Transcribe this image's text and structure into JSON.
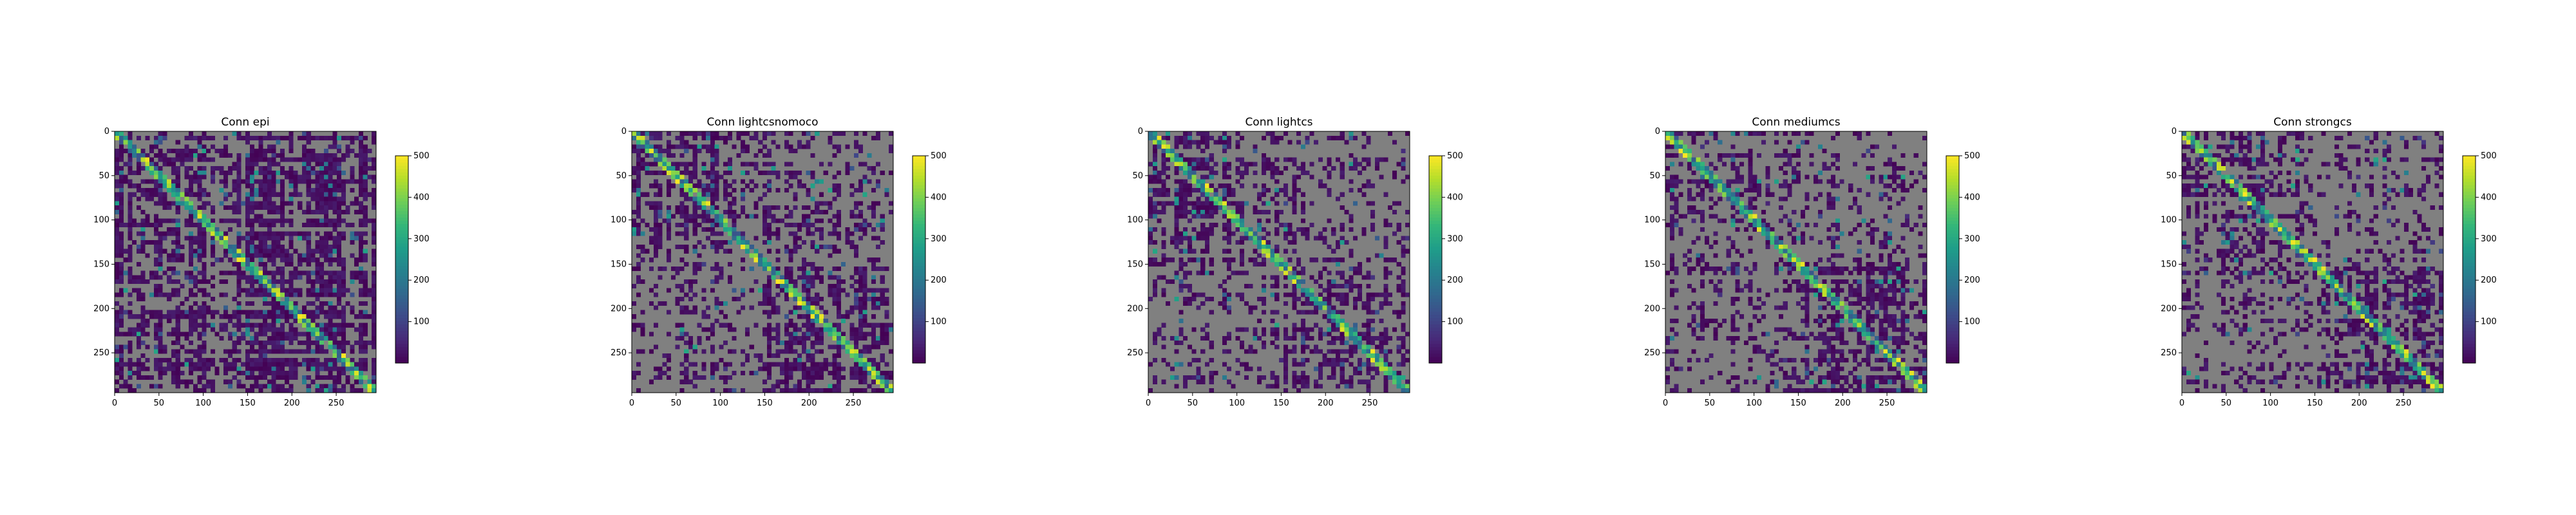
{
  "chart_data": [
    {
      "type": "heatmap",
      "title": "Conn epi",
      "matrix_size": 295,
      "background_color": "#808080",
      "mask_density": 0.55,
      "xticks": [
        0,
        50,
        100,
        150,
        200,
        250
      ],
      "yticks": [
        0,
        50,
        100,
        150,
        200,
        250
      ],
      "xlim": [
        0,
        295
      ],
      "ylim": [
        295,
        0
      ],
      "colorbar": {
        "ticks": [
          100,
          200,
          300,
          400,
          500
        ],
        "range": [
          0,
          500
        ],
        "colormap": "viridis"
      },
      "grid": false
    },
    {
      "type": "heatmap",
      "title": "Conn lightcsnomoco",
      "matrix_size": 295,
      "background_color": "#808080",
      "mask_density": 0.22,
      "xticks": [
        0,
        50,
        100,
        150,
        200,
        250
      ],
      "yticks": [
        0,
        50,
        100,
        150,
        200,
        250
      ],
      "xlim": [
        0,
        295
      ],
      "ylim": [
        295,
        0
      ],
      "colorbar": {
        "ticks": [
          100,
          200,
          300,
          400,
          500
        ],
        "range": [
          0,
          500
        ],
        "colormap": "viridis"
      },
      "grid": false
    },
    {
      "type": "heatmap",
      "title": "Conn lightcs",
      "matrix_size": 295,
      "background_color": "#808080",
      "mask_density": 0.22,
      "xticks": [
        0,
        50,
        100,
        150,
        200,
        250
      ],
      "yticks": [
        0,
        50,
        100,
        150,
        200,
        250
      ],
      "xlim": [
        0,
        295
      ],
      "ylim": [
        295,
        0
      ],
      "colorbar": {
        "ticks": [
          100,
          200,
          300,
          400,
          500
        ],
        "range": [
          0,
          500
        ],
        "colormap": "viridis"
      },
      "grid": false
    },
    {
      "type": "heatmap",
      "title": "Conn mediumcs",
      "matrix_size": 295,
      "background_color": "#808080",
      "mask_density": 0.22,
      "xticks": [
        0,
        50,
        100,
        150,
        200,
        250
      ],
      "yticks": [
        0,
        50,
        100,
        150,
        200,
        250
      ],
      "xlim": [
        0,
        295
      ],
      "ylim": [
        295,
        0
      ],
      "colorbar": {
        "ticks": [
          100,
          200,
          300,
          400,
          500
        ],
        "range": [
          0,
          500
        ],
        "colormap": "viridis"
      },
      "grid": false
    },
    {
      "type": "heatmap",
      "title": "Conn strongcs",
      "matrix_size": 295,
      "background_color": "#808080",
      "mask_density": 0.22,
      "xticks": [
        0,
        50,
        100,
        150,
        200,
        250
      ],
      "yticks": [
        0,
        50,
        100,
        150,
        200,
        250
      ],
      "xlim": [
        0,
        295
      ],
      "ylim": [
        295,
        0
      ],
      "colorbar": {
        "ticks": [
          100,
          200,
          300,
          400,
          500
        ],
        "range": [
          0,
          500
        ],
        "colormap": "viridis"
      },
      "grid": false
    }
  ]
}
